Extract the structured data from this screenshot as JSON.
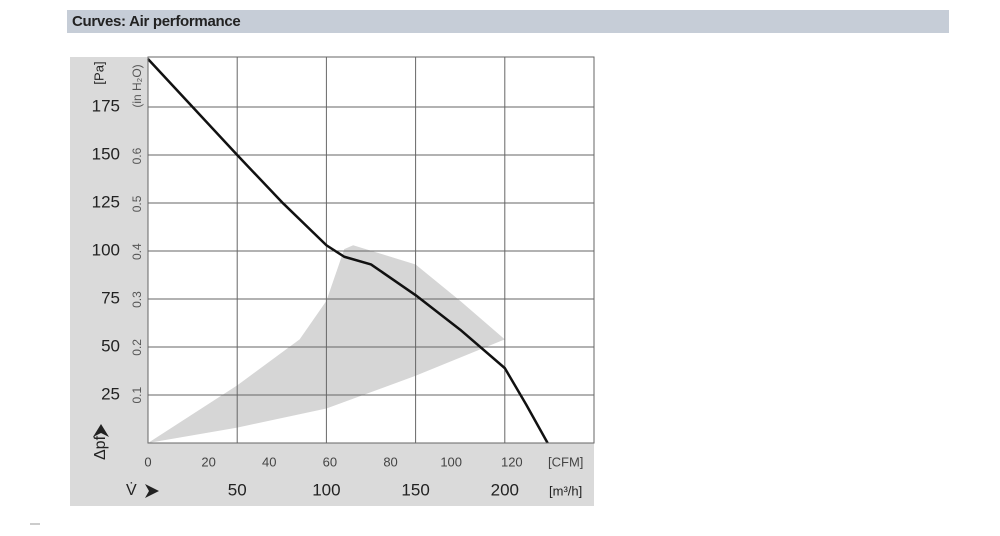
{
  "header": {
    "title": "Curves: Air performance"
  },
  "chart_data": {
    "type": "line",
    "y_label": "[Pa]",
    "y2_label": "(in H₂O)",
    "y_axis_symbol": "Δpf",
    "x_axis_symbol": "V̇",
    "x_label": "[m³/h]",
    "x2_label": "[CFM]",
    "xlim": [
      0,
      250
    ],
    "xticks": [
      50,
      100,
      150,
      200
    ],
    "x2lim": [
      0,
      147.1
    ],
    "x2ticks": [
      0,
      20,
      40,
      60,
      80,
      100,
      120
    ],
    "ylim": [
      0,
      200
    ],
    "yticks": [
      25,
      50,
      75,
      100,
      125,
      150,
      175
    ],
    "y2lim": [
      0,
      0.803
    ],
    "y2ticks": [
      0.1,
      0.2,
      0.3,
      0.4,
      0.5,
      0.6
    ],
    "grid": true,
    "series": [
      {
        "color": "#111111",
        "x": [
          0,
          25,
          50,
          75,
          100,
          110,
          125,
          150,
          175,
          200,
          212,
          224
        ],
        "values": [
          200,
          175,
          150,
          125.5,
          103,
          97,
          93,
          77,
          59,
          39,
          20,
          0
        ]
      }
    ],
    "shaded_region": {
      "color": "#d6d6d6",
      "x": [
        0,
        50,
        85,
        100,
        110,
        115,
        150,
        175,
        200,
        150,
        100,
        50
      ],
      "values": [
        0,
        30,
        54,
        74,
        101,
        103,
        93,
        74,
        54,
        35,
        18,
        8
      ]
    }
  }
}
